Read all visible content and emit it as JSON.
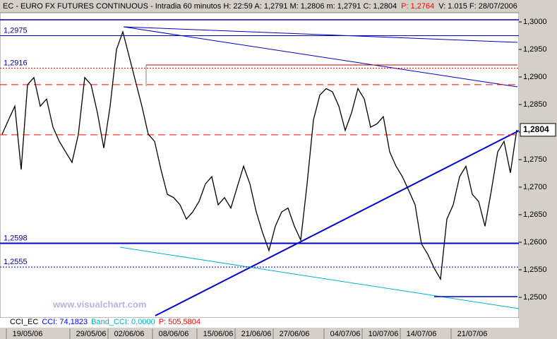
{
  "chart_data": {
    "type": "line",
    "header": [
      "EC - EURO FX FUTURES CONTINUOUS - Intradia 60 minutos  H: 22:59  A: 1,2791  M: 1,2806  m: 1,2791  C: 1,2804",
      "P: 1,2764",
      "V: 1.015  F: 28/07/2006"
    ],
    "header_colors": [
      "#000000",
      "#ff0000",
      "#000000"
    ],
    "categories": [
      null,
      null,
      null,
      null,
      "19/05/06",
      null,
      null,
      null,
      null,
      null,
      null,
      null,
      null,
      null,
      "29/05/06",
      null,
      null,
      null,
      null,
      null,
      "02/06/06",
      null,
      null,
      null,
      null,
      null,
      null,
      "08/06/06",
      null,
      null,
      null,
      null,
      null,
      null,
      "15/06/06",
      null,
      null,
      null,
      null,
      null,
      "21/06/06",
      null,
      null,
      null,
      null,
      null,
      "27/06/06",
      null,
      null,
      null,
      null,
      null,
      null,
      null,
      "04/07/06",
      null,
      null,
      null,
      null,
      null,
      "10/07/06",
      null,
      null,
      null,
      null,
      null,
      "14/07/06",
      null,
      null,
      null,
      null,
      null,
      null,
      null,
      "21/07/06",
      null,
      null,
      null,
      null,
      null,
      null,
      null
    ],
    "values": [
      1.2796,
      1.2822,
      1.2847,
      1.2732,
      1.2886,
      1.2899,
      1.2847,
      1.286,
      1.2809,
      1.2783,
      1.2764,
      1.2745,
      1.2796,
      1.2899,
      1.2886,
      1.2835,
      1.2771,
      1.2847,
      1.295,
      1.2982,
      1.2937,
      1.2892,
      1.2847,
      1.2796,
      1.2783,
      1.2732,
      1.2687,
      1.2681,
      1.2668,
      1.2642,
      1.2655,
      1.2674,
      1.2706,
      1.2719,
      1.2668,
      1.2681,
      1.2662,
      1.27,
      1.2738,
      1.2706,
      1.2655,
      1.2617,
      1.2585,
      1.2629,
      1.2655,
      1.2662,
      1.2629,
      1.2604,
      1.2706,
      1.2822,
      1.2867,
      1.2879,
      1.2873,
      1.2847,
      1.2803,
      1.2835,
      1.2879,
      1.286,
      1.2809,
      1.2815,
      1.2828,
      1.2764,
      1.2738,
      1.2719,
      1.2694,
      1.2668,
      1.2597,
      1.2578,
      1.2553,
      1.2533,
      1.2642,
      1.2668,
      1.2719,
      1.2738,
      1.2687,
      1.2674,
      1.2629,
      1.2694,
      1.2764,
      1.2783,
      1.2726,
      1.2804
    ],
    "color": "#000000",
    "ylim": [
      1.24628,
      1.30141
    ],
    "yticks": [
      {
        "value": 1.25,
        "label": "1,2500"
      },
      {
        "value": 1.255,
        "label": "1,2550"
      },
      {
        "value": 1.26,
        "label": "1,2600"
      },
      {
        "value": 1.265,
        "label": "1,2650"
      },
      {
        "value": 1.27,
        "label": "1,2700"
      },
      {
        "value": 1.275,
        "label": "1,2750"
      },
      {
        "value": 1.28,
        "label": "1,2800"
      },
      {
        "value": 1.285,
        "label": "1,2850"
      },
      {
        "value": 1.29,
        "label": "1,2900"
      },
      {
        "value": 1.295,
        "label": "1,2950"
      },
      {
        "value": 1.3,
        "label": "1,3000"
      }
    ],
    "last_price": {
      "value": 1.2804,
      "label": "1,2804"
    },
    "levels": [
      {
        "value": 1.2975,
        "label": "1,2975",
        "color": "#0000c0",
        "style": "solid"
      },
      {
        "value": 1.2916,
        "label": "1,2916",
        "color": "#ff0000",
        "style": "dotted"
      },
      {
        "value": 1.2886,
        "color": "#ff0000",
        "style": "dashed"
      },
      {
        "value": 1.2795,
        "color": "#ff0000",
        "style": "dashed"
      },
      {
        "value": 1.2598,
        "label": "1,2598",
        "color": "#0000c0",
        "style": "thick"
      },
      {
        "value": 1.2555,
        "label": "1,2555",
        "color": "#0000c0",
        "style": "dotted"
      }
    ],
    "watermark": "www.visualchart.com",
    "indicator": [
      "CCI_EC",
      "CCI: 74,1823",
      "Band_CCI: 0,0000",
      "P: 505,5804"
    ],
    "indicator_colors": [
      "#000000",
      "#0000ff",
      "#00b0c0",
      "#ff0000"
    ]
  }
}
